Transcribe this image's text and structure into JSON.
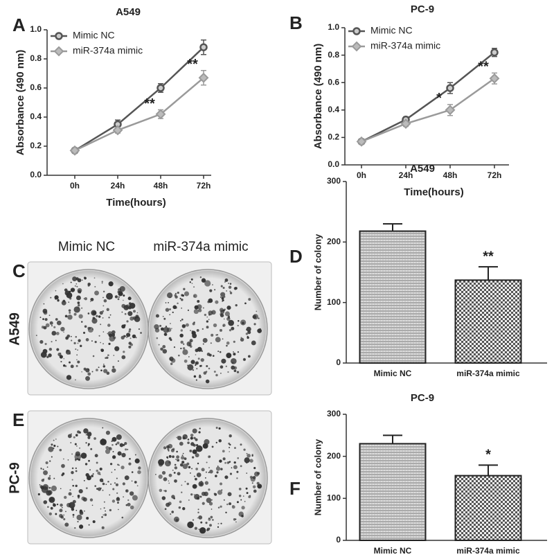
{
  "chart_data": [
    {
      "type": "line",
      "panel": "A",
      "title": "A549",
      "x_label": "Time(hours)",
      "y_label": "Absorbance (490 nm)",
      "categories": [
        "0h",
        "24h",
        "48h",
        "72h"
      ],
      "series": [
        {
          "name": "Mimic NC",
          "color": "#555555",
          "marker": "circle",
          "values": [
            0.17,
            0.35,
            0.6,
            0.88
          ],
          "errors": [
            0.01,
            0.03,
            0.03,
            0.05
          ]
        },
        {
          "name": "miR-374a mimic",
          "color": "#9a9a9a",
          "marker": "diamond",
          "values": [
            0.17,
            0.31,
            0.42,
            0.67
          ],
          "errors": [
            0.01,
            0.02,
            0.03,
            0.05
          ],
          "significance": [
            null,
            null,
            "**",
            "**"
          ]
        }
      ],
      "ylim": [
        0,
        1
      ],
      "yticks": [
        {
          "value": 0,
          "label": "0.0"
        },
        0.2,
        0.4,
        0.6,
        0.8,
        {
          "value": 1,
          "label": "1.0"
        }
      ],
      "legend": "upper left"
    },
    {
      "type": "line",
      "panel": "B",
      "title": "PC-9",
      "x_label": "Time(hours)",
      "y_label": "Absorbance (490 nm)",
      "categories": [
        "0h",
        "24h",
        "48h",
        "72h"
      ],
      "series": [
        {
          "name": "Mimic NC",
          "color": "#555555",
          "marker": "circle",
          "values": [
            0.17,
            0.33,
            0.56,
            0.82
          ],
          "errors": [
            0.01,
            0.02,
            0.04,
            0.03
          ]
        },
        {
          "name": "miR-374a mimic",
          "color": "#9a9a9a",
          "marker": "diamond",
          "values": [
            0.17,
            0.3,
            0.4,
            0.63
          ],
          "errors": [
            0.01,
            0.02,
            0.04,
            0.04
          ],
          "significance": [
            null,
            null,
            "*",
            "**"
          ]
        }
      ],
      "ylim": [
        0,
        1
      ],
      "yticks": [
        {
          "value": 0,
          "label": "0.0"
        },
        0.2,
        0.4,
        0.6,
        0.8,
        {
          "value": 1,
          "label": "1.0"
        }
      ],
      "legend": "upper left"
    },
    {
      "type": "bar",
      "panel": "D",
      "title": "A549",
      "y_label": "Number of colony",
      "categories": [
        "Mimic NC",
        "miR-374a mimic"
      ],
      "values": [
        218,
        137
      ],
      "errors": [
        12,
        22
      ],
      "significance": [
        null,
        "**"
      ],
      "ylim": [
        0,
        300
      ],
      "yticks": [
        0,
        100,
        200,
        300
      ]
    },
    {
      "type": "bar",
      "panel": "F",
      "title": "PC-9",
      "y_label": "Number of colony",
      "categories": [
        "Mimic NC",
        "miR-374a mimic"
      ],
      "values": [
        230,
        154
      ],
      "errors": [
        20,
        25
      ],
      "significance": [
        null,
        "*"
      ],
      "ylim": [
        0,
        300
      ],
      "yticks": [
        0,
        100,
        200,
        300
      ]
    }
  ],
  "photos": {
    "column_labels": [
      "Mimic NC",
      "miR-374a mimic"
    ],
    "rows": [
      {
        "panel": "C",
        "row_label": "A549"
      },
      {
        "panel": "E",
        "row_label": "PC-9"
      }
    ]
  }
}
